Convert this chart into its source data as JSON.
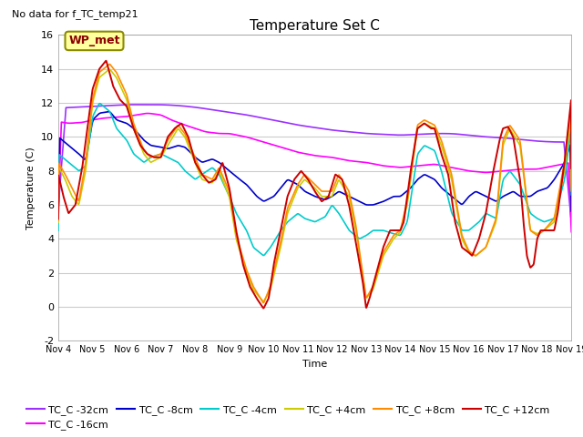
{
  "title": "Temperature Set C",
  "subtitle": "No data for f_TC_temp21",
  "xlabel": "Time",
  "ylabel": "Temperature (C)",
  "ylim": [
    -2,
    16
  ],
  "yticks": [
    -2,
    0,
    2,
    4,
    6,
    8,
    10,
    12,
    14,
    16
  ],
  "xlim": [
    0,
    15
  ],
  "xtick_labels": [
    "Nov 4",
    "Nov 5",
    "Nov 6",
    "Nov 7",
    "Nov 8",
    "Nov 9",
    "Nov 10",
    "Nov 11",
    "Nov 12",
    "Nov 13",
    "Nov 14",
    "Nov 15",
    "Nov 16",
    "Nov 17",
    "Nov 18",
    "Nov 19"
  ],
  "series_colors": {
    "TC_C -32cm": "#9B30FF",
    "TC_C -16cm": "#FF00FF",
    "TC_C -8cm": "#0000CC",
    "TC_C -4cm": "#00CCCC",
    "TC_C +4cm": "#CCCC00",
    "TC_C +8cm": "#FF8C00",
    "TC_C +12cm": "#CC0000"
  },
  "wp_met_label": "WP_met",
  "grid_color": "#CCCCCC",
  "fig_bg": "#FFFFFF",
  "plot_bg": "#FFFFFF"
}
